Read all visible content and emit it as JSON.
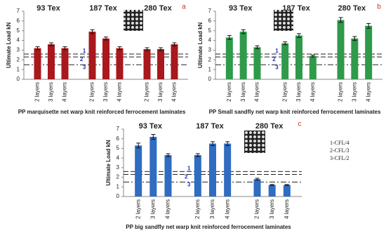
{
  "chart_data": [
    {
      "type": "bar",
      "panel": "a",
      "ylabel": "Ultimate Load kN",
      "xlabel": "PP marquisette net warp knit reinforced ferrocement laminates",
      "groups": [
        "93 Tex",
        "187 Tex",
        "280 Tex"
      ],
      "categories": [
        "2 layers",
        "3 layers",
        "4 layers",
        "2 layers",
        "3 layers",
        "4 layers",
        "2 layers",
        "3 layers",
        "4 layers"
      ],
      "values": [
        3.2,
        3.6,
        3.2,
        4.9,
        4.2,
        3.2,
        3.1,
        3.1,
        3.6
      ],
      "errors": [
        0.15,
        0.15,
        0.15,
        0.2,
        0.15,
        0.15,
        0.15,
        0.15,
        0.15
      ],
      "color": "#a8181c",
      "ylim": [
        0,
        7
      ],
      "yticks": [
        0,
        1,
        2,
        3,
        4,
        5,
        6,
        7
      ],
      "reference_lines": [
        {
          "label": "1",
          "value": 2.6
        },
        {
          "label": "2",
          "value": 2.3
        },
        {
          "label": "3",
          "value": 1.5
        }
      ]
    },
    {
      "type": "bar",
      "panel": "b",
      "ylabel": "Ultimate Load kN",
      "xlabel": "PP Small sandfly  net warp knit reinforced ferrocement laminates",
      "groups": [
        "93 Tex",
        "187 Tex",
        "280 Tex"
      ],
      "categories": [
        "2 layers",
        "3 layers",
        "4 layers",
        "2 layers",
        "3 layers",
        "4 layers",
        "2 layers",
        "3 layers",
        "4 layers"
      ],
      "values": [
        4.3,
        4.9,
        3.3,
        3.7,
        4.5,
        2.4,
        6.1,
        4.2,
        5.5
      ],
      "errors": [
        0.2,
        0.2,
        0.15,
        0.15,
        0.2,
        0.1,
        0.25,
        0.2,
        0.25
      ],
      "color": "#2e9a4a",
      "ylim": [
        0,
        7
      ],
      "yticks": [
        0,
        1,
        2,
        3,
        4,
        5,
        6,
        7
      ],
      "reference_lines": [
        {
          "label": "1",
          "value": 2.6
        },
        {
          "label": "2",
          "value": 2.3
        },
        {
          "label": "3",
          "value": 1.5
        }
      ]
    },
    {
      "type": "bar",
      "panel": "c",
      "ylabel": "Ultimate Load kN",
      "xlabel": "PP big sandfly  net warp knit reinforced ferrocement laminates",
      "groups": [
        "93 Tex",
        "187 Tex",
        "280 Tex"
      ],
      "categories": [
        "2 layers",
        "3 layers",
        "4 layers",
        "2 layers",
        "3 layers",
        "4 layers",
        "2 layers",
        "3 layers",
        "4 layers"
      ],
      "values": [
        5.3,
        6.2,
        4.3,
        4.3,
        5.5,
        5.5,
        1.8,
        1.2,
        1.2
      ],
      "errors": [
        0.25,
        0.25,
        0.15,
        0.15,
        0.2,
        0.2,
        0.1,
        0.05,
        0.05
      ],
      "color": "#2f6cc2",
      "ylim": [
        0,
        7
      ],
      "yticks": [
        0,
        1,
        2,
        3,
        4,
        5,
        6,
        7
      ],
      "reference_lines": [
        {
          "label": "1",
          "value": 2.6
        },
        {
          "label": "2",
          "value": 2.3
        },
        {
          "label": "3",
          "value": 1.5
        }
      ],
      "notes": [
        "1-CFL/4",
        "2-CFL/3",
        "3-CFL/2"
      ]
    }
  ]
}
